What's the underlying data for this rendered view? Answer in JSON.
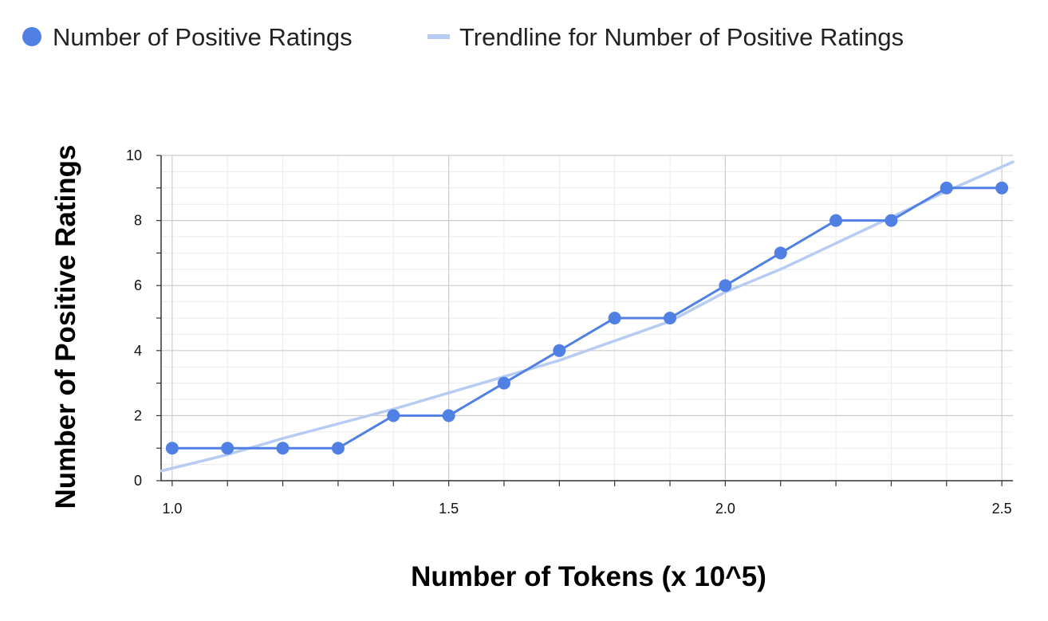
{
  "chart_data": {
    "type": "line",
    "xlabel": "Number of Tokens (x 10^5)",
    "ylabel": "Number of Positive Ratings",
    "xlim": [
      0.98,
      2.52
    ],
    "ylim": [
      0,
      10
    ],
    "x_ticks": [
      1.0,
      1.5,
      2.0,
      2.5
    ],
    "x_tick_labels": [
      "1.0",
      "1.5",
      "2.0",
      "2.5"
    ],
    "y_ticks": [
      0,
      2,
      4,
      6,
      8,
      10
    ],
    "y_tick_labels": [
      "0",
      "2",
      "4",
      "6",
      "8",
      "10"
    ],
    "grid": true,
    "legend_position": "top-left",
    "series": [
      {
        "name": "Number of Positive Ratings",
        "kind": "line-with-markers",
        "color": "#5080e4",
        "x": [
          1.0,
          1.1,
          1.2,
          1.3,
          1.4,
          1.5,
          1.6,
          1.7,
          1.8,
          1.9,
          2.0,
          2.1,
          2.2,
          2.3,
          2.4,
          2.5
        ],
        "y": [
          1,
          1,
          1,
          1,
          2,
          2,
          3,
          4,
          5,
          5,
          6,
          7,
          8,
          8,
          9,
          9
        ]
      },
      {
        "name": "Trendline for Number of Positive Ratings",
        "kind": "trendline",
        "color": "#b7ccf3",
        "x": [
          0.98,
          1.1,
          1.2,
          1.3,
          1.4,
          1.5,
          1.6,
          1.7,
          1.8,
          1.9,
          2.0,
          2.1,
          2.2,
          2.3,
          2.4,
          2.52
        ],
        "y": [
          0.3,
          0.8,
          1.3,
          1.75,
          2.2,
          2.7,
          3.2,
          3.7,
          4.3,
          4.9,
          5.8,
          6.5,
          7.3,
          8.1,
          8.9,
          9.8
        ]
      }
    ]
  }
}
